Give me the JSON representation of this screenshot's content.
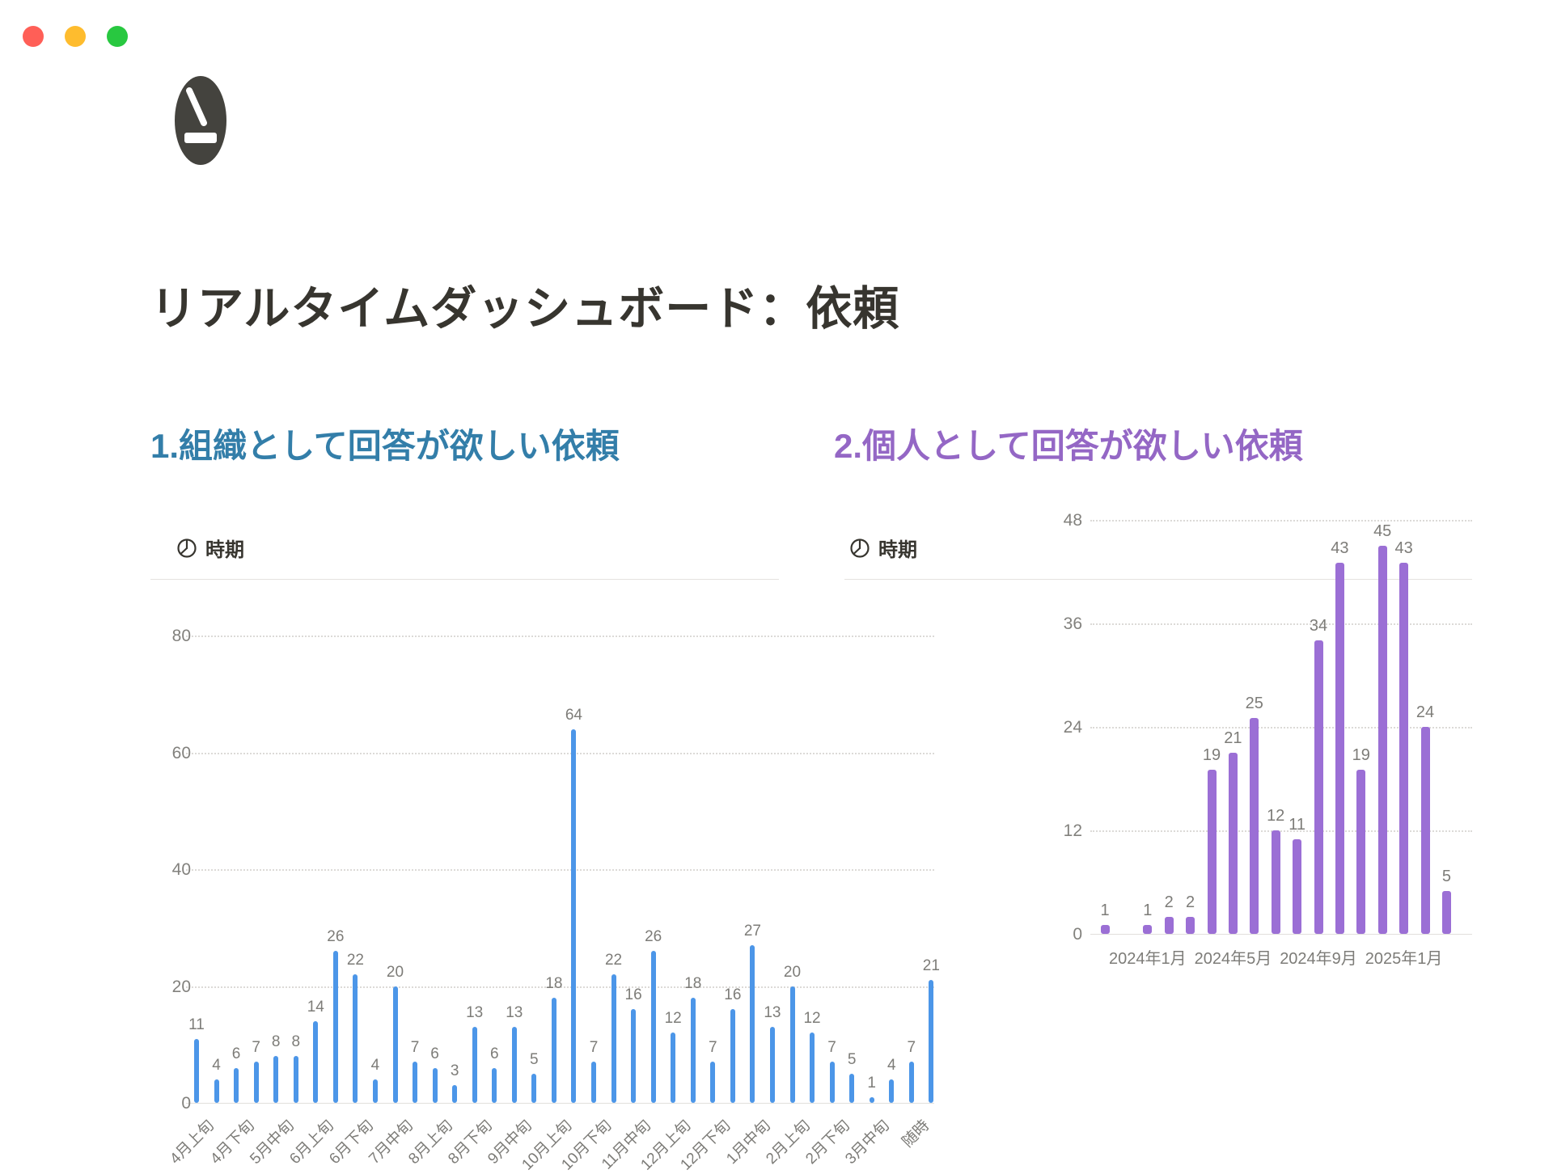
{
  "window": {
    "controls": [
      {
        "name": "close",
        "color": "#FF5F57"
      },
      {
        "name": "minimize",
        "color": "#FEBC2E"
      },
      {
        "name": "zoom",
        "color": "#28C840"
      }
    ]
  },
  "page": {
    "icon": "gauge-timer-icon",
    "icon_color": "#44433E",
    "title": "リアルタイムダッシュボード：依頼"
  },
  "sections": [
    {
      "heading": "1.組織として回答が欲しい依頼",
      "heading_color": "#337EA9",
      "property_icon": "clock-pie-icon",
      "property_label": "時期"
    },
    {
      "heading": "2.個人として回答が欲しい依頼",
      "heading_color": "#9467C5",
      "property_icon": "clock-pie-icon",
      "property_label": "時期"
    }
  ],
  "chart_data": [
    {
      "type": "bar",
      "title": "時期",
      "bar_color": "#4C96E8",
      "ylim": [
        0,
        80
      ],
      "yticks": [
        0,
        20,
        40,
        60,
        80
      ],
      "grid": "dotted-horizontal",
      "legend": "none",
      "x_label_rotation": -45,
      "categories": [
        "4月上旬",
        "",
        "4月下旬",
        "",
        "5月中旬",
        "",
        "6月上旬",
        "",
        "6月下旬",
        "",
        "7月中旬",
        "",
        "8月上旬",
        "",
        "8月下旬",
        "",
        "9月中旬",
        "",
        "10月上旬",
        "",
        "10月下旬",
        "",
        "11月中旬",
        "",
        "12月上旬",
        "",
        "12月下旬",
        "",
        "1月中旬",
        "",
        "2月上旬",
        "",
        "2月下旬",
        "",
        "3月中旬",
        "",
        "随時",
        ""
      ],
      "values": [
        11,
        4,
        6,
        7,
        8,
        8,
        14,
        26,
        22,
        4,
        20,
        7,
        6,
        3,
        13,
        6,
        13,
        5,
        18,
        64,
        7,
        22,
        16,
        26,
        12,
        18,
        7,
        16,
        27,
        13,
        20,
        12,
        7,
        5,
        1,
        4,
        7,
        21
      ]
    },
    {
      "type": "bar",
      "title": "時期",
      "bar_color": "#9B6FD5",
      "ylim": [
        0,
        48
      ],
      "yticks": [
        0,
        12,
        24,
        36,
        48
      ],
      "grid": "dotted-horizontal",
      "legend": "none",
      "x_label_rotation": 0,
      "categories": [
        "",
        "",
        "2024年1月",
        "",
        "",
        "",
        "2024年5月",
        "",
        "",
        "",
        "2024年9月",
        "",
        "",
        "",
        "2025年1月",
        "",
        ""
      ],
      "values": [
        1,
        0,
        1,
        2,
        2,
        19,
        21,
        25,
        12,
        11,
        34,
        43,
        19,
        45,
        43,
        24,
        5
      ]
    }
  ]
}
